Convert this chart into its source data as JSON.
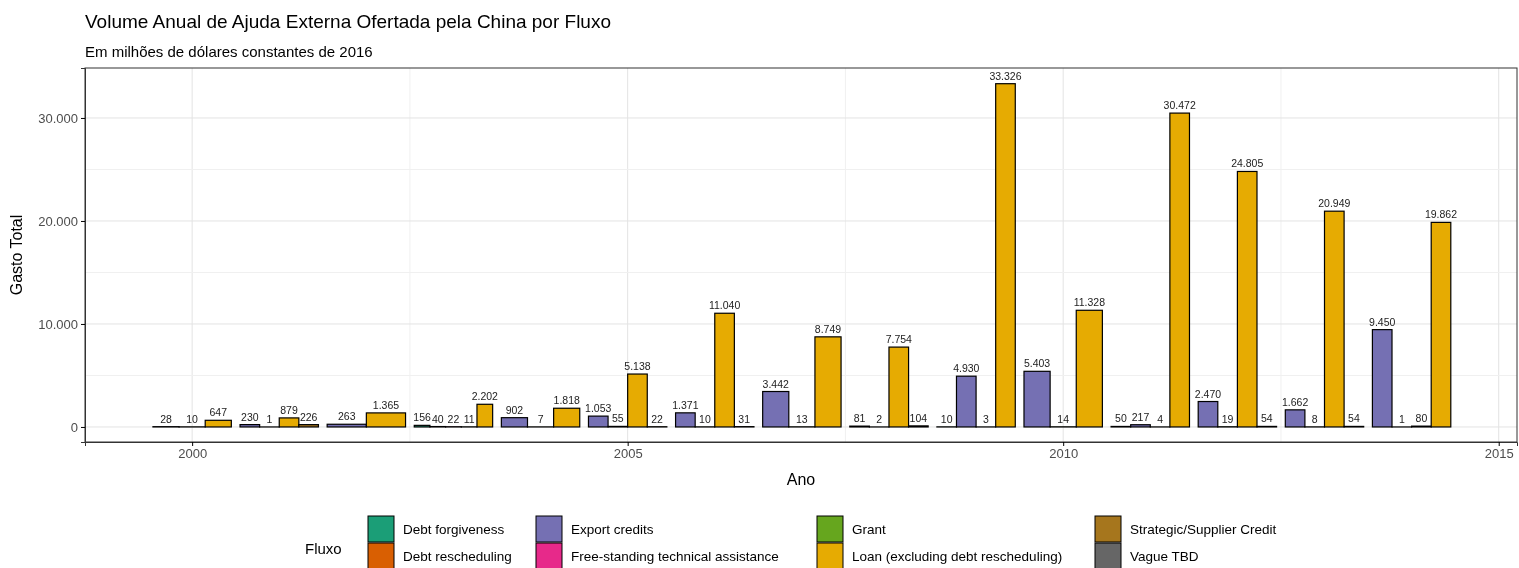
{
  "chart_data": {
    "type": "bar",
    "title": "Volume Anual de Ajuda Externa Ofertada pela China por Fluxo",
    "subtitle": "Em milhões de dólares constantes de 2016",
    "xlabel": "Ano",
    "ylabel": "Gasto Total",
    "legend_title": "Fluxo",
    "x": [
      2000,
      2001,
      2002,
      2003,
      2004,
      2005,
      2006,
      2007,
      2008,
      2009,
      2010,
      2011,
      2012,
      2013,
      2014
    ],
    "series": [
      {
        "name": "Debt forgiveness",
        "color": "#1b9e77",
        "values": [
          null,
          null,
          null,
          156,
          null,
          null,
          null,
          null,
          null,
          10,
          null,
          50,
          null,
          null,
          null
        ],
        "value_labels": [
          null,
          null,
          null,
          "156",
          null,
          null,
          null,
          null,
          null,
          "10",
          null,
          "50",
          null,
          null,
          null
        ]
      },
      {
        "name": "Debt rescheduling",
        "color": "#d95f02",
        "values": [
          null,
          null,
          null,
          null,
          null,
          null,
          null,
          null,
          null,
          null,
          null,
          null,
          null,
          null,
          null
        ]
      },
      {
        "name": "Export credits",
        "color": "#7570b3",
        "values": [
          28,
          230,
          263,
          40,
          902,
          1053,
          1371,
          3442,
          81,
          4930,
          5403,
          217,
          2470,
          1662,
          9450
        ],
        "value_labels": [
          "28",
          "230",
          "263",
          "40",
          "902",
          "1.053",
          "1.371",
          "3.442",
          "81",
          "4.930",
          "5.403",
          "217",
          "2.470",
          "1.662",
          "9.450"
        ]
      },
      {
        "name": "Free-standing technical assistance",
        "color": "#e7298a",
        "values": [
          null,
          null,
          null,
          22,
          null,
          null,
          null,
          null,
          null,
          null,
          null,
          null,
          null,
          null,
          1
        ],
        "value_labels": [
          null,
          null,
          null,
          "22",
          null,
          null,
          null,
          null,
          null,
          null,
          null,
          null,
          null,
          null,
          "1"
        ]
      },
      {
        "name": "Grant",
        "color": "#66a61e",
        "values": [
          10,
          1,
          null,
          11,
          7,
          55,
          10,
          13,
          2,
          3,
          14,
          4,
          19,
          8,
          80
        ],
        "value_labels": [
          "10",
          "1",
          null,
          "11",
          "7",
          "55",
          "10",
          "13",
          "2",
          "3",
          "14",
          "4",
          "19",
          "8",
          "80"
        ]
      },
      {
        "name": "Loan (excluding debt rescheduling)",
        "color": "#e6ab02",
        "values": [
          647,
          879,
          1365,
          2202,
          1818,
          5138,
          11040,
          8749,
          7754,
          33326,
          11328,
          30472,
          24805,
          20949,
          19862
        ],
        "value_labels": [
          "647",
          "879",
          "1.365",
          "2.202",
          "1.818",
          "5.138",
          "11.040",
          "8.749",
          "7.754",
          "33.326",
          "11.328",
          "30.472",
          "24.805",
          "20.949",
          "19.862"
        ]
      },
      {
        "name": "Strategic/Supplier Credit",
        "color": "#a6761d",
        "values": [
          null,
          226,
          null,
          null,
          null,
          22,
          31,
          null,
          104,
          null,
          null,
          null,
          54,
          54,
          null
        ],
        "value_labels": [
          null,
          "226",
          null,
          null,
          null,
          "22",
          "31",
          null,
          "104",
          null,
          null,
          null,
          "54",
          "54",
          null
        ]
      },
      {
        "name": "Vague TBD",
        "color": "#666666",
        "values": [
          null,
          null,
          null,
          null,
          null,
          null,
          null,
          null,
          null,
          null,
          null,
          null,
          null,
          null,
          null
        ]
      }
    ],
    "xlim": [
      1998.77,
      2015.21
    ],
    "xticks": [
      2000,
      2005,
      2010,
      2015
    ],
    "ylim": [
      -1460,
      34850
    ],
    "yticks": [
      {
        "value": 0,
        "label": "0"
      },
      {
        "value": 10000,
        "label": "10.000"
      },
      {
        "value": 20000,
        "label": "20.000"
      },
      {
        "value": 30000,
        "label": "30.000"
      }
    ],
    "grid": true,
    "legend": "bottom"
  }
}
